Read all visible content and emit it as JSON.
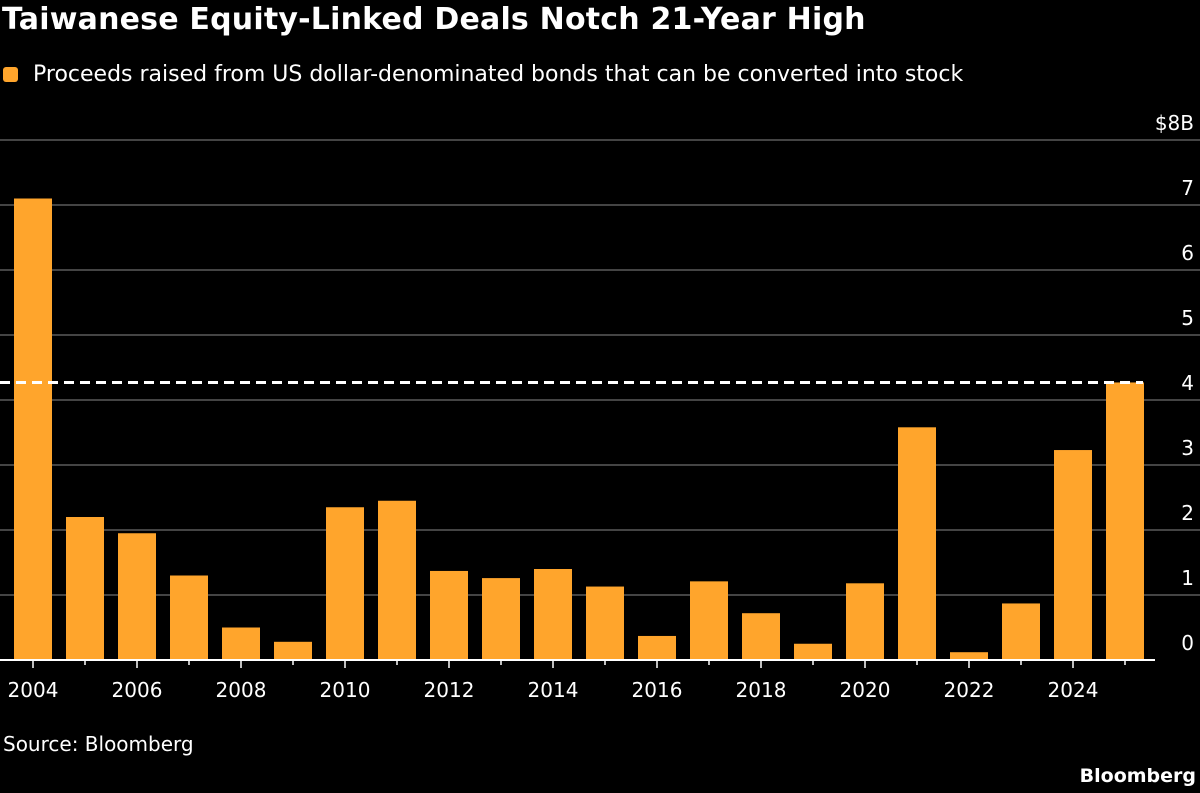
{
  "chart_data": {
    "type": "bar",
    "title": "Taiwanese Equity-Linked Deals Notch 21-Year High",
    "legend": [
      {
        "label": "Proceeds raised from US dollar-denominated bonds that can be converted into stock",
        "color": "#ffa52c"
      }
    ],
    "categories": [
      "2004",
      "2005",
      "2006",
      "2007",
      "2008",
      "2009",
      "2010",
      "2011",
      "2012",
      "2013",
      "2014",
      "2015",
      "2016",
      "2017",
      "2018",
      "2019",
      "2020",
      "2021",
      "2022",
      "2023",
      "2024",
      "2025"
    ],
    "values": [
      7.1,
      2.2,
      1.95,
      1.3,
      0.5,
      0.28,
      2.35,
      2.45,
      1.37,
      1.26,
      1.4,
      1.13,
      0.37,
      1.21,
      0.72,
      0.25,
      1.18,
      3.58,
      0.12,
      0.87,
      3.23,
      4.27
    ],
    "tick_labels_x": [
      "2004",
      "2006",
      "2008",
      "2010",
      "2012",
      "2014",
      "2016",
      "2018",
      "2020",
      "2022",
      "2024"
    ],
    "y_ticks": [
      0,
      1,
      2,
      3,
      4,
      5,
      6,
      7,
      8
    ],
    "y_tick_labels": [
      "0",
      "1",
      "2",
      "3",
      "4",
      "5",
      "6",
      "7",
      "$8B"
    ],
    "ylim": [
      0,
      8
    ],
    "y_axis_side": "right",
    "grid": true,
    "reference_line": {
      "value": 4.27,
      "style": "dashed",
      "color": "#ffffff"
    },
    "xlabel": "",
    "ylabel": "",
    "source": "Source: Bloomberg",
    "brand": "Bloomberg"
  },
  "colors": {
    "background": "#000000",
    "bar": "#ffa52c",
    "grid": "#5a5a5a",
    "text": "#ffffff"
  }
}
